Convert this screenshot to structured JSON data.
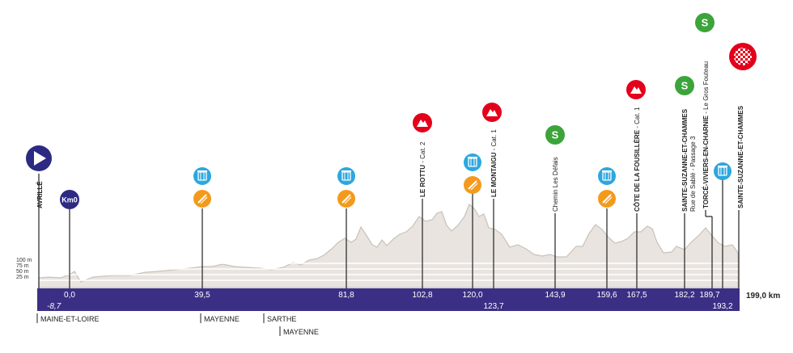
{
  "profile": {
    "total_distance": "199,0 km",
    "altitude_labels": [
      "100 m",
      "75 m",
      "50 m",
      "25 m"
    ],
    "neutral_km": "-8,7",
    "colors": {
      "bar": "#3b2f85",
      "profile_fill": "#e9e4df",
      "profile_stroke": "#c9c2ba",
      "start": "#2d2a84",
      "km0": "#2d2a84",
      "climb": "#e3001b",
      "sprint": "#3ca43a",
      "food": "#2ca7df",
      "feed": "#f39a1d"
    }
  },
  "markers": [
    {
      "key": "start",
      "label": "AVRILLÉ",
      "sub": "",
      "km": "",
      "icon": "start-icon"
    },
    {
      "key": "km0",
      "label": "",
      "sub": "",
      "km": "0,0",
      "icon": "km0-badge",
      "badge": "Km0"
    },
    {
      "key": "feed1",
      "label": "",
      "sub": "",
      "km": "39,5",
      "icon": "food-and-feed-icons"
    },
    {
      "key": "feed2",
      "label": "",
      "sub": "",
      "km": "81,8",
      "icon": "food-and-feed-icons"
    },
    {
      "key": "rottu",
      "label": "LE ROTTU",
      "sub": " - Cat. 2",
      "km": "102,8",
      "icon": "climb-icon"
    },
    {
      "key": "feed3",
      "label": "",
      "sub": "",
      "km": "120,0",
      "icon": "food-and-feed-icons"
    },
    {
      "key": "montaigu",
      "label": "LE MONTAIGU",
      "sub": " - Cat. 1",
      "km": "123,7",
      "icon": "climb-icon"
    },
    {
      "key": "sprint1",
      "label": "Chemin Les Défais",
      "sub": "",
      "km": "143,9",
      "icon": "sprint-icon"
    },
    {
      "key": "feed4",
      "label": "",
      "sub": "",
      "km": "159,6",
      "icon": "food-and-feed-icons"
    },
    {
      "key": "fousillere",
      "label": "CÔTE DE LA FOUSILLÈRE",
      "sub": " - Cat. 1",
      "km": "167,5",
      "icon": "climb-icon"
    },
    {
      "key": "sprint2",
      "label": "SAINTE-SUZANNE-ET-CHAMMES",
      "sub": "Rue de Sablé - Passage 3",
      "km": "182,2",
      "icon": "sprint-icon"
    },
    {
      "key": "sprint3",
      "label": "TORCÉ-VIVIERS-EN-CHARNIE",
      "sub": " - Le Gros Fouteau",
      "km": "189,7",
      "icon": "sprint-icon"
    },
    {
      "key": "food5",
      "label": "",
      "sub": "",
      "km": "193,2",
      "icon": "food-icon"
    },
    {
      "key": "finish",
      "label": "SAINTE-SUZANNE-ET-CHAMMES",
      "sub": "",
      "km": "",
      "icon": "finish-icon"
    }
  ],
  "departments": [
    "MAINE-ET-LOIRE",
    "MAYENNE",
    "SARTHE",
    "MAYENNE"
  ]
}
